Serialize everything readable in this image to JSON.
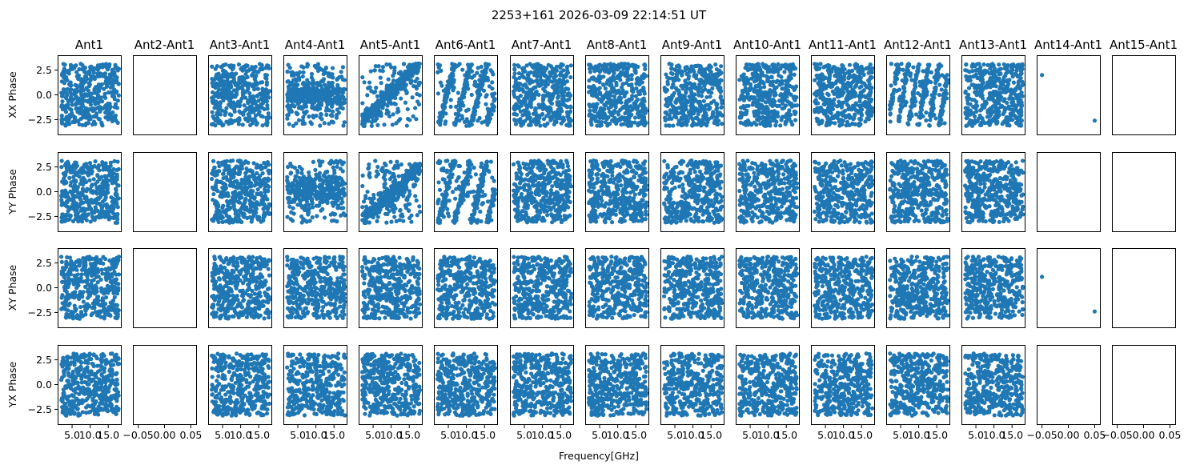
{
  "figure": {
    "title": "2253+161 2026-03-09 22:14:51 UT",
    "xlabel": "Frequency[GHz]"
  },
  "chart_data": {
    "type": "scatter",
    "marker_color": "#1f77b4",
    "rows": [
      "XX Phase",
      "YY Phase",
      "XY Phase",
      "YX Phase"
    ],
    "columns": [
      "Ant1",
      "Ant2-Ant1",
      "Ant3-Ant1",
      "Ant4-Ant1",
      "Ant5-Ant1",
      "Ant6-Ant1",
      "Ant7-Ant1",
      "Ant8-Ant1",
      "Ant9-Ant1",
      "Ant10-Ant1",
      "Ant11-Ant1",
      "Ant12-Ant1",
      "Ant13-Ant1",
      "Ant14-Ant1",
      "Ant15-Ant1"
    ],
    "ylim": [
      -4.0,
      4.0
    ],
    "yticks": [
      -2.5,
      0.0,
      2.5
    ],
    "ytick_labels": [
      "−2.5",
      "0.0",
      "2.5"
    ],
    "xlim_frequency": [
      1.0,
      18.5
    ],
    "xticks_frequency": [
      5.0,
      10.0,
      15.0
    ],
    "xtick_labels_frequency": [
      "5.0",
      "10.0",
      "15.0"
    ],
    "xlim_empty": [
      -0.06,
      0.06
    ],
    "xticks_empty": [
      -0.05,
      0.0,
      0.05
    ],
    "xtick_labels_empty": [
      "−0.05",
      "0.00",
      "0.05"
    ],
    "empty_columns": [
      "Ant2-Ant1",
      "Ant15-Ant1"
    ],
    "sparse_column": "Ant14-Ant1",
    "sparse_points": {
      "XX Phase": [
        [
          -0.05,
          2.0
        ],
        [
          0.05,
          -2.6
        ]
      ],
      "YY Phase": [],
      "XY Phase": [
        [
          -0.05,
          1.1
        ],
        [
          0.05,
          -2.4
        ]
      ],
      "YX Phase": []
    },
    "structured_panels": [
      {
        "row": "XX Phase",
        "column": "Ant4-Ant1",
        "pattern": "cluster",
        "center": 0.0
      },
      {
        "row": "YY Phase",
        "column": "Ant4-Ant1",
        "pattern": "cluster",
        "center": 0.3
      },
      {
        "row": "XX Phase",
        "column": "Ant5-Ant1",
        "pattern": "slope",
        "slope": 0.38
      },
      {
        "row": "YY Phase",
        "column": "Ant5-Ant1",
        "pattern": "slope",
        "slope": 0.32
      },
      {
        "row": "XX Phase",
        "column": "Ant6-Ant1",
        "pattern": "wraps",
        "slope": 1.4
      },
      {
        "row": "YY Phase",
        "column": "Ant6-Ant1",
        "pattern": "wraps",
        "slope": 1.4
      },
      {
        "row": "YY Phase",
        "column": "Ant9-Ant1",
        "pattern": "low-cluster",
        "center": -1.8
      },
      {
        "row": "XX Phase",
        "column": "Ant12-Ant1",
        "pattern": "wraps",
        "slope": 2.2
      }
    ],
    "points_per_panel": 420,
    "phase_range": [
      -3.14,
      3.14
    ],
    "frequency_range": [
      2.0,
      18.0
    ]
  }
}
